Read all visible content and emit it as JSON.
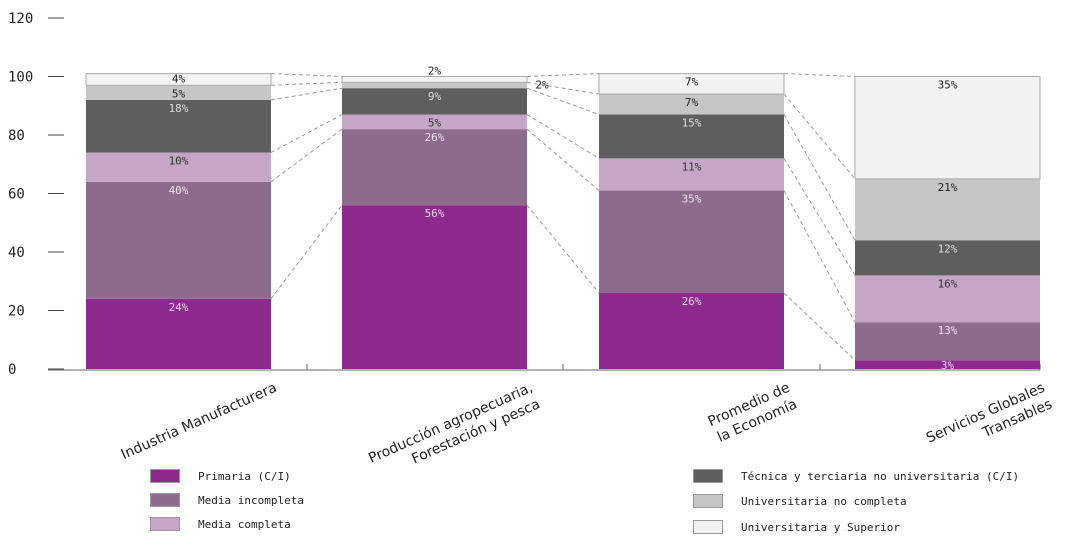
{
  "chart_data": {
    "type": "bar",
    "stacked": true,
    "title": "",
    "xlabel": "",
    "ylabel": "",
    "ylim": [
      0,
      120
    ],
    "yticks": [
      0,
      20,
      40,
      60,
      80,
      100,
      120
    ],
    "categories": [
      [
        "Industria Manufacturera"
      ],
      [
        "Producción agropecuaria,",
        "Forestación y pesca"
      ],
      [
        "Promedio de",
        "la Economía"
      ],
      [
        "Servicios Globales",
        "Transables"
      ]
    ],
    "series": [
      {
        "name": "Primaria (C/I)",
        "color": "#8e2a8e",
        "label_color": "#f0d6f0",
        "values": [
          24,
          56,
          26,
          3
        ]
      },
      {
        "name": "Media incompleta",
        "color": "#8c6b8c",
        "label_color": "#f0e0f0",
        "values": [
          40,
          26,
          35,
          13
        ]
      },
      {
        "name": "Media completa",
        "color": "#c6a6c6",
        "label_color": "#333333",
        "values": [
          10,
          5,
          11,
          16
        ]
      },
      {
        "name": "Técnica y terciaria no universitaria (C/I)",
        "color": "#5e5e5e",
        "label_color": "#dddddd",
        "values": [
          18,
          9,
          15,
          12
        ]
      },
      {
        "name": "Universitaria no completa",
        "color": "#c6c6c6",
        "label_color": "#222222",
        "values": [
          5,
          2,
          7,
          21
        ]
      },
      {
        "name": "Universitaria y Superior",
        "color": "#f2f2f2",
        "label_color": "#222222",
        "values": [
          4,
          2,
          7,
          35
        ]
      }
    ],
    "data_labels": [
      [
        "24%",
        "40%",
        "10%",
        "18%",
        "5%",
        "4%"
      ],
      [
        "56%",
        "26%",
        "5%",
        "9%",
        "2%",
        "2%"
      ],
      [
        "26%",
        "35%",
        "11%",
        "15%",
        "7%",
        "7%"
      ],
      [
        "3%",
        "13%",
        "16%",
        "12%",
        "21%",
        "35%"
      ]
    ],
    "legend_position": "bottom"
  }
}
